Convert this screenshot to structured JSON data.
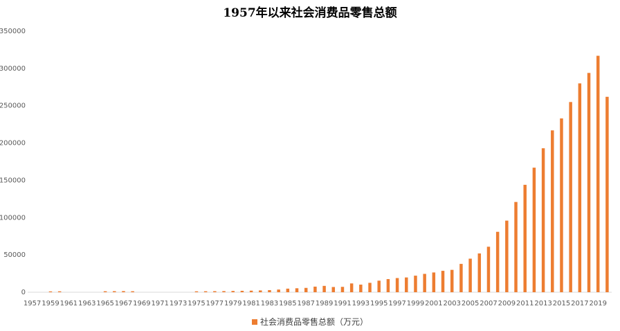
{
  "chart_data": {
    "type": "bar",
    "title": "1957年以来社会消费品零售总额",
    "ylim": [
      0,
      350000
    ],
    "y_ticks": [
      "0",
      "50000",
      "100000",
      "150000",
      "200000",
      "250000",
      "300000",
      "350000"
    ],
    "x_tick_labels": [
      "1957",
      "1959",
      "1961",
      "1963",
      "1965",
      "1967",
      "1969",
      "1971",
      "1973",
      "1975",
      "1977",
      "1979",
      "1981",
      "1983",
      "1985",
      "1987",
      "1989",
      "1991",
      "1993",
      "1995",
      "1997",
      "1999",
      "2001",
      "2003",
      "2005",
      "2007",
      "2009",
      "2011",
      "2013",
      "2015",
      "2017",
      "2019"
    ],
    "grid": false,
    "legend_position": "bottom",
    "bar_color": "#ED7D31",
    "series": [
      {
        "name": "社会消费品零售总额（万元）",
        "x": [
          1957,
          1958,
          1959,
          1960,
          1961,
          1962,
          1963,
          1964,
          1965,
          1966,
          1967,
          1968,
          1969,
          1970,
          1971,
          1972,
          1973,
          1974,
          1975,
          1976,
          1977,
          1978,
          1979,
          1980,
          1981,
          1982,
          1983,
          1984,
          1985,
          1986,
          1987,
          1988,
          1989,
          1990,
          1991,
          1992,
          1993,
          1994,
          1995,
          1996,
          1997,
          1998,
          1999,
          2000,
          2001,
          2002,
          2003,
          2004,
          2005,
          2006,
          2007,
          2008,
          2009,
          2010,
          2011,
          2012,
          2013,
          2014,
          2015,
          2016,
          2017,
          2018,
          2019,
          2020
        ],
        "values": [
          0,
          0,
          1100,
          1200,
          0,
          0,
          0,
          0,
          1300,
          1400,
          1500,
          1300,
          0,
          0,
          0,
          0,
          0,
          0,
          1200,
          1300,
          1400,
          1500,
          1700,
          1900,
          2100,
          2400,
          2800,
          3600,
          4800,
          5300,
          5800,
          7500,
          8500,
          7000,
          7200,
          11800,
          10200,
          12600,
          15500,
          17600,
          19000,
          19800,
          22200,
          24600,
          26500,
          28700,
          30000,
          38000,
          45000,
          52000,
          61000,
          81000,
          96000,
          121000,
          144000,
          167000,
          193000,
          217000,
          233000,
          255000,
          280000,
          294000,
          317000,
          262000
        ]
      }
    ]
  }
}
